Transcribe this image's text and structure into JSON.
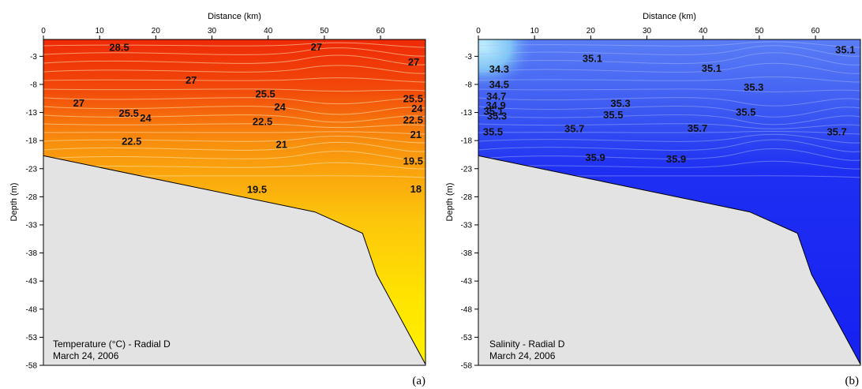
{
  "chart_data": [
    {
      "type": "contour",
      "panel_label": "(a)",
      "xlabel": "Distance (km)",
      "ylabel": "Depth (m)",
      "xlim": [
        0,
        68
      ],
      "ylim": [
        -58,
        0
      ],
      "xticks": [
        0,
        10,
        20,
        30,
        40,
        50,
        60
      ],
      "yticks": [
        -3,
        -8,
        -13,
        -18,
        -23,
        -28,
        -33,
        -38,
        -43,
        -48,
        -53,
        -58
      ],
      "annotation_lines": [
        "Temperature (°C) - Radial D",
        "March 24, 2006"
      ],
      "colors": {
        "top": "#ee2a08",
        "mid": "#f8a50e",
        "bottom": "#ffe800",
        "seabed": "#e3e3e3"
      },
      "bottom_profile": [
        [
          0,
          -20.7
        ],
        [
          48.3,
          -30.7
        ],
        [
          56.8,
          -34.5
        ],
        [
          59.3,
          -41.8
        ],
        [
          68,
          -57.8
        ]
      ],
      "contour_labels": [
        {
          "text": "28.5",
          "x": 13.5,
          "y": -1.4
        },
        {
          "text": "27",
          "x": 48.6,
          "y": -1.3
        },
        {
          "text": "27",
          "x": 65.9,
          "y": -4.0
        },
        {
          "text": "27",
          "x": 26.3,
          "y": -7.2
        },
        {
          "text": "27",
          "x": 6.3,
          "y": -11.3
        },
        {
          "text": "25.5",
          "x": 39.5,
          "y": -9.7
        },
        {
          "text": "25.5",
          "x": 65.8,
          "y": -10.5
        },
        {
          "text": "24",
          "x": 42.1,
          "y": -12.0
        },
        {
          "text": "24",
          "x": 66.5,
          "y": -12.3
        },
        {
          "text": "25.5",
          "x": 15.2,
          "y": -13.1
        },
        {
          "text": "24",
          "x": 18.2,
          "y": -14.0
        },
        {
          "text": "22.5",
          "x": 39.0,
          "y": -14.6
        },
        {
          "text": "22.5",
          "x": 65.8,
          "y": -14.3
        },
        {
          "text": "21",
          "x": 66.3,
          "y": -16.9
        },
        {
          "text": "22.5",
          "x": 15.7,
          "y": -18.1
        },
        {
          "text": "21",
          "x": 42.4,
          "y": -18.7
        },
        {
          "text": "19.5",
          "x": 65.8,
          "y": -21.6
        },
        {
          "text": "19.5",
          "x": 38.0,
          "y": -26.7
        },
        {
          "text": "18",
          "x": 66.3,
          "y": -26.6
        }
      ]
    },
    {
      "type": "contour",
      "panel_label": "(b)",
      "xlabel": "Distance (km)",
      "ylabel": "Depth (m)",
      "xlim": [
        0,
        68
      ],
      "ylim": [
        -58,
        0
      ],
      "xticks": [
        0,
        10,
        20,
        30,
        40,
        50,
        60
      ],
      "yticks": [
        -3,
        -8,
        -13,
        -18,
        -23,
        -28,
        -33,
        -38,
        -43,
        -48,
        -53,
        -58
      ],
      "annotation_lines": [
        "Salinity - Radial D",
        "March 24, 2006"
      ],
      "colors": {
        "fresh": "#8ad6f5",
        "mid": "#3a5ff0",
        "deep": "#1520f2",
        "seabed": "#e3e3e3"
      },
      "bottom_profile": [
        [
          0,
          -20.7
        ],
        [
          48.3,
          -30.7
        ],
        [
          56.8,
          -34.5
        ],
        [
          59.3,
          -41.8
        ],
        [
          68,
          -57.8
        ]
      ],
      "contour_labels": [
        {
          "text": "35.1",
          "x": 20.3,
          "y": -3.4
        },
        {
          "text": "35.1",
          "x": 41.5,
          "y": -5.1
        },
        {
          "text": "35.1",
          "x": 65.3,
          "y": -1.8
        },
        {
          "text": "34.3",
          "x": 3.7,
          "y": -5.3
        },
        {
          "text": "34.5",
          "x": 3.7,
          "y": -8.0
        },
        {
          "text": "34.7",
          "x": 3.2,
          "y": -10.1
        },
        {
          "text": "34.9",
          "x": 3.1,
          "y": -11.7
        },
        {
          "text": "35.1",
          "x": 2.7,
          "y": -12.8
        },
        {
          "text": "35.3",
          "x": 3.3,
          "y": -13.6
        },
        {
          "text": "35.3",
          "x": 49.0,
          "y": -8.5
        },
        {
          "text": "35.3",
          "x": 25.3,
          "y": -11.4
        },
        {
          "text": "35.5",
          "x": 24.0,
          "y": -13.4
        },
        {
          "text": "35.5",
          "x": 47.6,
          "y": -12.9
        },
        {
          "text": "35.5",
          "x": 2.6,
          "y": -16.4
        },
        {
          "text": "35.7",
          "x": 17.1,
          "y": -15.9
        },
        {
          "text": "35.7",
          "x": 39.0,
          "y": -15.8
        },
        {
          "text": "35.7",
          "x": 63.8,
          "y": -16.4
        },
        {
          "text": "35.9",
          "x": 20.8,
          "y": -21.0
        },
        {
          "text": "35.9",
          "x": 35.2,
          "y": -21.3
        }
      ]
    }
  ]
}
